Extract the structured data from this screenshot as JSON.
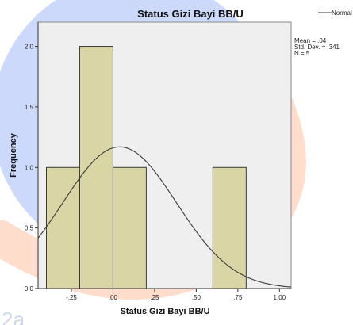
{
  "watermark": {
    "blue": "#2255ee",
    "orange": "#ff6a1a",
    "text": "2a"
  },
  "chart_data": {
    "type": "bar",
    "title": "Status Gizi Bayi BB/U",
    "xlabel": "Status Gizi Bayi BB/U",
    "ylabel": "Frequency",
    "bins": [
      {
        "x0": -0.4,
        "x1": -0.2,
        "count": 1
      },
      {
        "x0": -0.2,
        "x1": 0.0,
        "count": 2
      },
      {
        "x0": 0.0,
        "x1": 0.2,
        "count": 1
      },
      {
        "x0": 0.2,
        "x1": 0.4,
        "count": 0
      },
      {
        "x0": 0.4,
        "x1": 0.6,
        "count": 0
      },
      {
        "x0": 0.6,
        "x1": 0.8,
        "count": 1
      }
    ],
    "xlim": [
      -0.45,
      1.07
    ],
    "ylim": [
      0,
      2.2
    ],
    "xticks": [
      {
        "value": -0.25,
        "label": "-.25"
      },
      {
        "value": 0.0,
        "label": ".00"
      },
      {
        "value": 0.25,
        "label": ".25"
      },
      {
        "value": 0.5,
        "label": ".50"
      },
      {
        "value": 0.75,
        "label": ".75"
      },
      {
        "value": 1.0,
        "label": "1.00"
      }
    ],
    "yticks": [
      {
        "value": 0,
        "label": "0.0"
      },
      {
        "value": 0.5,
        "label": "0.5"
      },
      {
        "value": 1.0,
        "label": "1.0"
      },
      {
        "value": 1.5,
        "label": "1.5"
      },
      {
        "value": 2.0,
        "label": "2.0"
      }
    ],
    "normal_curve": {
      "mean": 0.04,
      "sd": 0.341,
      "n": 5,
      "bin_width": 0.2
    },
    "legend": {
      "label": "Normal",
      "position": "top-right"
    },
    "stats": [
      "Mean = .04",
      "Std. Dev. = .341",
      "N = 5"
    ],
    "grid": false,
    "colors": {
      "bar_fill": "#d5cf95",
      "bar_stroke": "#3a3a3a",
      "plot_bg": "#efefef",
      "curve": "#3a3a3a"
    }
  }
}
